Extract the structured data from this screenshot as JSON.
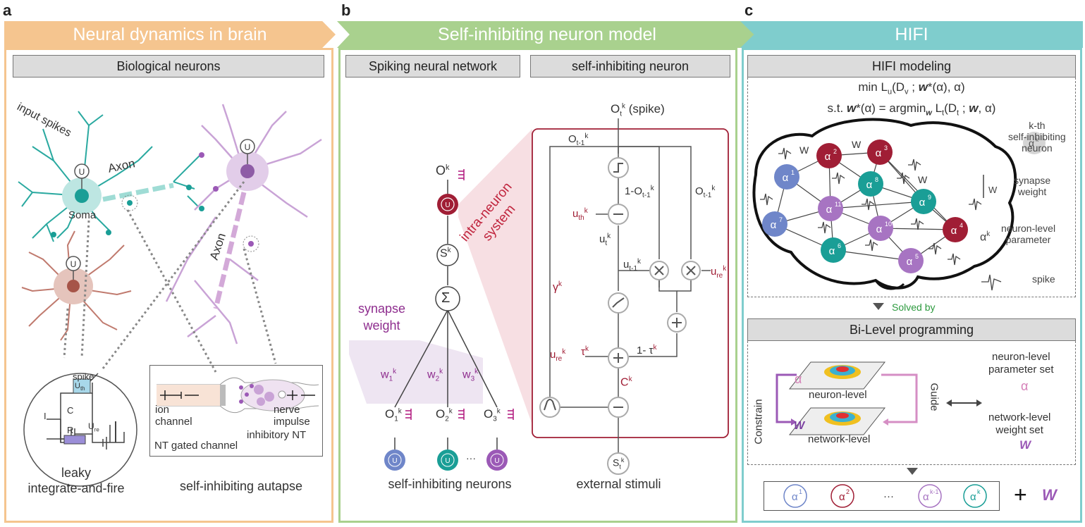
{
  "panels": {
    "a": {
      "letter": "a",
      "title": "Neural dynamics in brain",
      "header": "Biological neurons",
      "labels": {
        "input_spikes": "input spikes",
        "axon1": "Axon",
        "axon2": "Axon",
        "soma": "Soma",
        "spike": "spike",
        "uth": "U",
        "uth_sub": "th",
        "c": "C",
        "i": "I",
        "r": "R",
        "ure": "U",
        "ure_sub": "re",
        "ion_channel": "ion\nchannel",
        "nt_gated": "NT gated channel",
        "nerve_impulse": "nerve\nimpulse",
        "inhibitory_nt": "inhibitory NT",
        "u": "U"
      },
      "caption_left": "leaky\nintegrate-and-fire",
      "caption_right": "self-inhibiting autapse"
    },
    "b": {
      "letter": "b",
      "title": "Self-inhibiting neuron model",
      "header_left": "Spiking neural network",
      "header_right": "self-inhibiting neuron",
      "labels": {
        "ok": "O",
        "sk": "S",
        "sigma": "Σ",
        "synapse_weight": "synapse\nweight",
        "w1": "w",
        "w2": "w",
        "w3": "w",
        "o1": "O",
        "o2": "O",
        "o3": "O",
        "dots": "···",
        "intra_neuron": "intra-neuron\nsystem",
        "ot_spike": "(spike)",
        "o_t1": "O",
        "one_minus_o": "1-O",
        "uth": "u",
        "ut": "u",
        "ut1": "u",
        "ure1": "u",
        "ure2": "u",
        "gamma": "γ",
        "tau": "τ",
        "one_minus_tau": "1- τ",
        "ck": "C",
        "stk": "S",
        "k": "k",
        "t": "t",
        "t1": "t-1",
        "th": "th",
        "re": "re",
        "u": "U"
      },
      "caption_left": "self-inhibiting neurons",
      "caption_right": "external stimuli"
    },
    "c": {
      "letter": "c",
      "title": "HIFI",
      "header_top": "HIFI modeling",
      "eq1": "min Lᵤ(Dᵥ ; w*(α), α)",
      "eq2": "s.t. w*(α) = argminᵥᵥ Lₜ(Dₜ ; w, α)",
      "eq1_parts": [
        "min L",
        "u",
        "(D",
        "v",
        " ; ",
        "w",
        "*(α), α)"
      ],
      "eq2_parts": [
        "s.t. ",
        "w",
        "*(α) = argmin",
        "w",
        " L",
        "t",
        "(D",
        "t",
        " ; ",
        "w",
        ", α)"
      ],
      "legend": {
        "alpha_k": "α",
        "k_th": "k-th\nself-inhibiting\nneuron",
        "w": "W",
        "synapse_weight": "synapse\nweight",
        "neuron_level": "neuron-level\nparameter",
        "spike": "spike"
      },
      "brain_nodes": [
        "1",
        "2",
        "3",
        "7",
        "8",
        "9",
        "11",
        "10",
        "4",
        "6",
        "5"
      ],
      "w_labels": [
        "W",
        "W",
        "W"
      ],
      "solved_by": "Solved by",
      "header_bottom": "Bi-Level programming",
      "bilevel": {
        "constrain": "Constrain",
        "guide": "Guide",
        "alpha": "α",
        "neuron_level": "neuron-level",
        "w": "W",
        "network_level": "network-level",
        "param_set": "neuron-level\nparameter set",
        "param_alpha": "α",
        "weight_set": "network-level\nweight set",
        "weight_w": "W"
      },
      "bottom_row": [
        "1",
        "2",
        "···",
        "k-1",
        "k"
      ],
      "plus": "+",
      "plus_w": "W"
    }
  },
  "colors": {
    "orange": "#f5c58f",
    "green": "#a9d18e",
    "teal": "#7fcdcd",
    "crimson": "#a01e35",
    "purple": "#9b59b6",
    "tealnode": "#1a9e96",
    "bluenode": "#6f86c9",
    "magenta": "#b0177d"
  }
}
